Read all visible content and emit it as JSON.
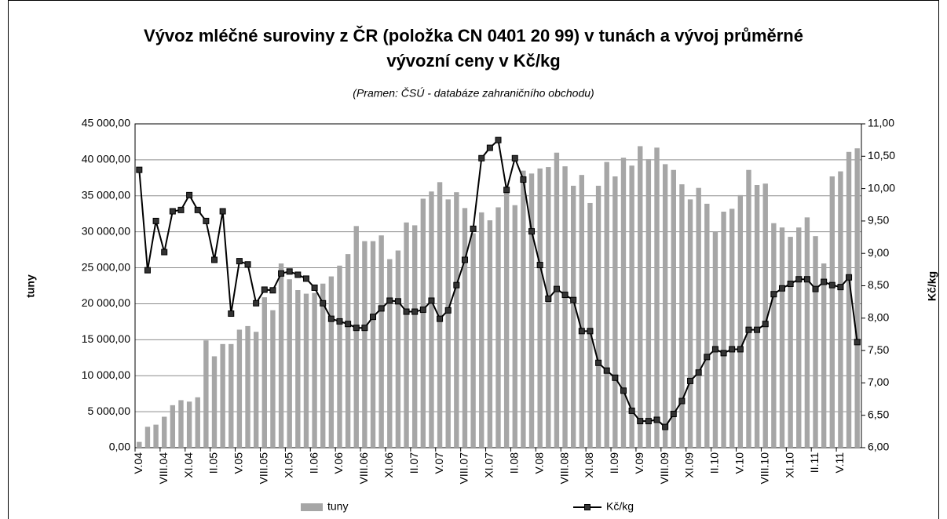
{
  "chart_data": {
    "type": "bar-line",
    "title": "Vývoz mléčné suroviny z ČR (položka CN 0401 20 99) v tunách a vývoj průměrné vývozní ceny v Kč/kg",
    "subtitle": "(Pramen: ČSÚ - databáze zahraničního obchodu)",
    "ylabel": "tuny",
    "y2label": "Kč/kg",
    "categories": [
      "V.04",
      null,
      null,
      "VIII.04",
      null,
      null,
      "XI.04",
      null,
      null,
      "II.05",
      null,
      null,
      "V.05",
      null,
      null,
      "VIII.05",
      null,
      null,
      "XI.05",
      null,
      null,
      "II.06",
      null,
      null,
      "V.06",
      null,
      null,
      "VIII.06",
      null,
      null,
      "XI.06",
      null,
      null,
      "II.07",
      null,
      null,
      "V.07",
      null,
      null,
      "VIII.07",
      null,
      null,
      "XI.07",
      null,
      null,
      "II.08",
      null,
      null,
      "V.08",
      null,
      null,
      "VIII.08",
      null,
      null,
      "XI.08",
      null,
      null,
      "II.09",
      null,
      null,
      "V.09",
      null,
      null,
      "VIII.09",
      null,
      null,
      "XI.09",
      null,
      null,
      "II.10",
      null,
      null,
      "V.10",
      null,
      null,
      "VIII.10",
      null,
      null,
      "XI.10",
      null,
      null,
      "II.11",
      null,
      null,
      "V.11",
      null,
      null
    ],
    "series": [
      {
        "name": "tuny",
        "color": "#a6a6a6",
        "kind": "bar",
        "axis": "y",
        "values": [
          800,
          2900,
          3200,
          4300,
          5900,
          6600,
          6400,
          7000,
          14900,
          12700,
          14400,
          14400,
          16400,
          16900,
          16100,
          20900,
          19100,
          25600,
          23400,
          21900,
          21400,
          21500,
          22800,
          23800,
          25300,
          26900,
          30800,
          28700,
          28700,
          29500,
          26200,
          27400,
          31300,
          30900,
          34600,
          35600,
          36900,
          34500,
          35500,
          33300,
          29800,
          32700,
          31600,
          33400,
          35500,
          33700,
          38500,
          38100,
          38800,
          39000,
          41000,
          39100,
          36400,
          37900,
          34000,
          36400,
          39700,
          37700,
          40300,
          39200,
          41900,
          40100,
          41700,
          39400,
          38600,
          36600,
          34500,
          36100,
          33900,
          30000,
          32800,
          33200,
          35100,
          38600,
          36500,
          36700,
          31200,
          30600,
          29300,
          30600,
          32000,
          29400,
          25600,
          37700,
          38400,
          41100,
          41600
        ]
      },
      {
        "name": "Kč/kg",
        "color": "#000000",
        "kind": "line",
        "axis": "y2",
        "values": [
          10.29,
          8.74,
          9.5,
          9.02,
          9.65,
          9.67,
          9.9,
          9.67,
          9.5,
          8.9,
          9.65,
          8.07,
          8.88,
          8.83,
          8.23,
          8.44,
          8.43,
          8.69,
          8.72,
          8.67,
          8.61,
          8.47,
          8.23,
          7.99,
          7.95,
          7.91,
          7.85,
          7.85,
          8.02,
          8.15,
          8.27,
          8.26,
          8.1,
          8.1,
          8.13,
          8.27,
          7.99,
          8.12,
          8.51,
          8.9,
          9.38,
          10.47,
          10.63,
          10.75,
          9.98,
          10.47,
          10.14,
          9.34,
          8.82,
          8.3,
          8.45,
          8.36,
          8.28,
          7.8,
          7.8,
          7.31,
          7.19,
          7.08,
          6.88,
          6.57,
          6.41,
          6.41,
          6.43,
          6.32,
          6.52,
          6.72,
          7.03,
          7.16,
          7.4,
          7.52,
          7.46,
          7.52,
          7.52,
          7.82,
          7.82,
          7.91,
          8.37,
          8.46,
          8.53,
          8.6,
          8.6,
          8.45,
          8.56,
          8.51,
          8.48,
          8.63,
          7.63
        ]
      }
    ],
    "ylim": [
      0,
      45000
    ],
    "yticks": [
      {
        "value": 0,
        "label": "0,00"
      },
      {
        "value": 5000,
        "label": "5 000,00"
      },
      {
        "value": 10000,
        "label": "10 000,00"
      },
      {
        "value": 15000,
        "label": "15 000,00"
      },
      {
        "value": 20000,
        "label": "20 000,00"
      },
      {
        "value": 25000,
        "label": "25 000,00"
      },
      {
        "value": 30000,
        "label": "30 000,00"
      },
      {
        "value": 35000,
        "label": "35 000,00"
      },
      {
        "value": 40000,
        "label": "40 000,00"
      },
      {
        "value": 45000,
        "label": "45 000,00"
      }
    ],
    "y2lim": [
      6,
      11
    ],
    "y2ticks": [
      {
        "value": 6,
        "label": "6,00"
      },
      {
        "value": 6.5,
        "label": "6,50"
      },
      {
        "value": 7,
        "label": "7,00"
      },
      {
        "value": 7.5,
        "label": "7,50"
      },
      {
        "value": 8,
        "label": "8,00"
      },
      {
        "value": 8.5,
        "label": "8,50"
      },
      {
        "value": 9,
        "label": "9,00"
      },
      {
        "value": 9.5,
        "label": "9,50"
      },
      {
        "value": 10,
        "label": "10,00"
      },
      {
        "value": 10.5,
        "label": "10,50"
      },
      {
        "value": 11,
        "label": "11,00"
      }
    ],
    "grid": true,
    "legend": "bottom"
  }
}
